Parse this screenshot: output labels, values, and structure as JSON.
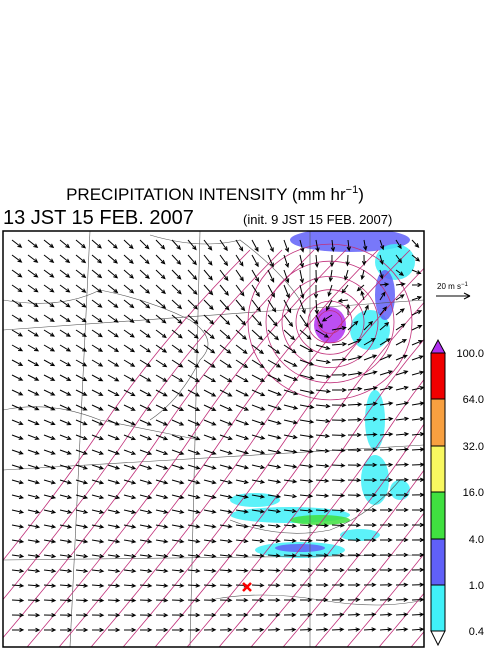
{
  "header": {
    "title_parts": [
      "PRECIPITATION INTENSITY (mm hr",
      "−1",
      ")"
    ],
    "valid_time": "13 JST 15 FEB. 2007",
    "init_time": "(init. 9 JST 15 FEB. 2007)"
  },
  "reference_vector": {
    "label_parts": [
      "20 m s",
      "−1"
    ]
  },
  "colorbar": {
    "labels": [
      "100.0",
      "64.0",
      "32.0",
      "16.0",
      "4.0",
      "1.0",
      "0.4"
    ]
  }
}
